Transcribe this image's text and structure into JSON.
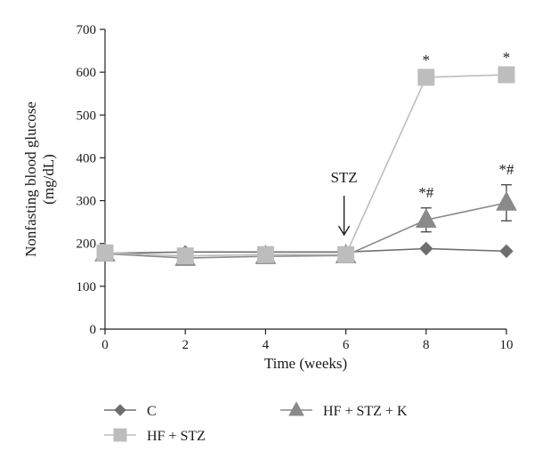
{
  "chart_data": {
    "type": "line",
    "title": "",
    "xlabel": "Time (weeks)",
    "ylabel_line1": "Nonfasting blood glucose",
    "ylabel_line2": "(mg/dL)",
    "xlim": [
      0,
      10
    ],
    "ylim": [
      0,
      700
    ],
    "x_ticks": [
      0,
      2,
      4,
      6,
      8,
      10
    ],
    "y_ticks": [
      0,
      100,
      200,
      300,
      400,
      500,
      600,
      700
    ],
    "grid": false,
    "legend_position": "bottom",
    "x": [
      0,
      2,
      4,
      6,
      8,
      10
    ],
    "series": [
      {
        "name": "C",
        "marker": "diamond",
        "color": "#6e6e6e",
        "values": [
          177,
          180,
          180,
          180,
          188,
          182
        ],
        "error": [
          0,
          0,
          0,
          0,
          0,
          0
        ],
        "labels": [
          "",
          "",
          "",
          "",
          "",
          ""
        ]
      },
      {
        "name": "HF + STZ + K",
        "marker": "triangle",
        "color": "#8a8a8a",
        "values": [
          176,
          166,
          170,
          172,
          255,
          295
        ],
        "error": [
          0,
          0,
          0,
          0,
          28,
          42
        ],
        "labels": [
          "",
          "",
          "",
          "",
          "*#",
          "*#"
        ]
      },
      {
        "name": "HF + STZ",
        "marker": "square",
        "color": "#bdbdbd",
        "values": [
          178,
          171,
          174,
          174,
          588,
          594
        ],
        "error": [
          0,
          0,
          0,
          0,
          0,
          0
        ],
        "labels": [
          "",
          "",
          "",
          "",
          "*",
          "*"
        ]
      }
    ],
    "annotations": [
      {
        "text": "STZ",
        "x": 6,
        "type": "arrow-down"
      }
    ]
  }
}
